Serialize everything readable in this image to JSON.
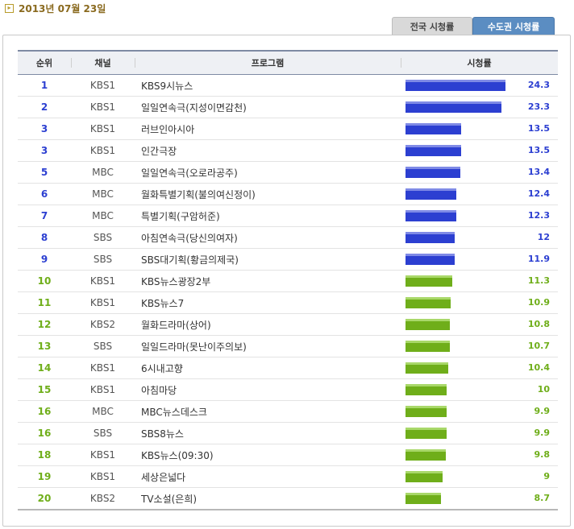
{
  "date": "2013년 07월 23일",
  "date_icon": "arrow-right-icon",
  "tabs": {
    "national": "전국 시청률",
    "metro": "수도권 시청률"
  },
  "columns": {
    "rank": "순위",
    "channel": "채널",
    "program": "프로그램",
    "rating": "시청률"
  },
  "colors": {
    "top_bar": "#2c3fd1",
    "other_bar": "#6fae1a",
    "header_line": "#7e8aa3"
  },
  "rating_scale_max": 24.3,
  "rows": [
    {
      "rank": "1",
      "channel": "KBS1",
      "program": "KBS9시뉴스",
      "rating": "24.3",
      "group": "blue"
    },
    {
      "rank": "2",
      "channel": "KBS1",
      "program": "일일연속극(지성이면감천)",
      "rating": "23.3",
      "group": "blue"
    },
    {
      "rank": "3",
      "channel": "KBS1",
      "program": "러브인아시아",
      "rating": "13.5",
      "group": "blue"
    },
    {
      "rank": "3",
      "channel": "KBS1",
      "program": "인간극장",
      "rating": "13.5",
      "group": "blue"
    },
    {
      "rank": "5",
      "channel": "MBC",
      "program": "일일연속극(오로라공주)",
      "rating": "13.4",
      "group": "blue"
    },
    {
      "rank": "6",
      "channel": "MBC",
      "program": "월화특별기획(불의여신정이)",
      "rating": "12.4",
      "group": "blue"
    },
    {
      "rank": "7",
      "channel": "MBC",
      "program": "특별기획(구암허준)",
      "rating": "12.3",
      "group": "blue"
    },
    {
      "rank": "8",
      "channel": "SBS",
      "program": "아침연속극(당신의여자)",
      "rating": "12",
      "group": "blue"
    },
    {
      "rank": "9",
      "channel": "SBS",
      "program": "SBS대기획(황금의제국)",
      "rating": "11.9",
      "group": "blue"
    },
    {
      "rank": "10",
      "channel": "KBS1",
      "program": "KBS뉴스광장2부",
      "rating": "11.3",
      "group": "green"
    },
    {
      "rank": "11",
      "channel": "KBS1",
      "program": "KBS뉴스7",
      "rating": "10.9",
      "group": "green"
    },
    {
      "rank": "12",
      "channel": "KBS2",
      "program": "월화드라마(상어)",
      "rating": "10.8",
      "group": "green"
    },
    {
      "rank": "13",
      "channel": "SBS",
      "program": "일일드라마(못난이주의보)",
      "rating": "10.7",
      "group": "green"
    },
    {
      "rank": "14",
      "channel": "KBS1",
      "program": "6시내고향",
      "rating": "10.4",
      "group": "green"
    },
    {
      "rank": "15",
      "channel": "KBS1",
      "program": "아침마당",
      "rating": "10",
      "group": "green"
    },
    {
      "rank": "16",
      "channel": "MBC",
      "program": "MBC뉴스데스크",
      "rating": "9.9",
      "group": "green"
    },
    {
      "rank": "16",
      "channel": "SBS",
      "program": "SBS8뉴스",
      "rating": "9.9",
      "group": "green"
    },
    {
      "rank": "18",
      "channel": "KBS1",
      "program": "KBS뉴스(09:30)",
      "rating": "9.8",
      "group": "green"
    },
    {
      "rank": "19",
      "channel": "KBS1",
      "program": "세상은넓다",
      "rating": "9",
      "group": "green"
    },
    {
      "rank": "20",
      "channel": "KBS2",
      "program": "TV소설(은희)",
      "rating": "8.7",
      "group": "green"
    }
  ]
}
